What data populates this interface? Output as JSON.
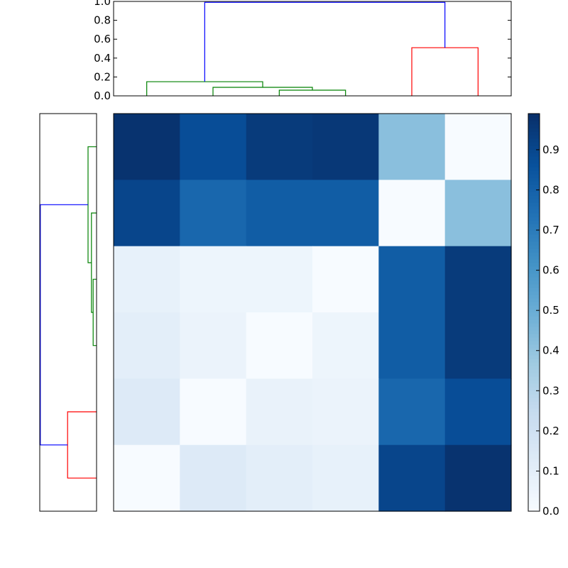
{
  "chart_data": {
    "type": "heatmap",
    "title": "",
    "colormap": "Blues",
    "heatmap": {
      "rows": 6,
      "cols": 6,
      "values": [
        [
          0.98,
          0.88,
          0.95,
          0.96,
          0.42,
          0.0
        ],
        [
          0.91,
          0.78,
          0.82,
          0.82,
          0.0,
          0.42
        ],
        [
          0.08,
          0.05,
          0.05,
          0.0,
          0.82,
          0.95
        ],
        [
          0.1,
          0.06,
          0.0,
          0.05,
          0.82,
          0.95
        ],
        [
          0.13,
          0.0,
          0.07,
          0.06,
          0.78,
          0.88
        ],
        [
          0.0,
          0.13,
          0.1,
          0.08,
          0.91,
          0.98
        ]
      ]
    },
    "colorbar": {
      "range": [
        0.0,
        0.99
      ],
      "ticks": [
        0.0,
        0.1,
        0.2,
        0.3,
        0.4,
        0.5,
        0.6,
        0.7,
        0.8,
        0.9
      ],
      "tick_labels": [
        "0.0",
        "0.1",
        "0.2",
        "0.3",
        "0.4",
        "0.5",
        "0.6",
        "0.7",
        "0.8",
        "0.9"
      ]
    },
    "top_dendrogram": {
      "ylim": [
        0.0,
        1.0
      ],
      "ticks": [
        0.0,
        0.2,
        0.4,
        0.6,
        0.8,
        1.0
      ],
      "tick_labels": [
        "0.0",
        "0.2",
        "0.4",
        "0.6",
        "0.8",
        "1.0"
      ],
      "leaf_count": 6,
      "links": [
        {
          "left": 3.0,
          "right": 4.0,
          "height": 0.06,
          "color": "#008000"
        },
        {
          "left": 2.0,
          "right": 3.5,
          "height": 0.09,
          "color": "#008000"
        },
        {
          "left": 1.0,
          "right": 2.75,
          "height": 0.15,
          "color": "#008000"
        },
        {
          "left": 5.0,
          "right": 6.0,
          "height": 0.51,
          "color": "#ff0000"
        },
        {
          "left": 1.875,
          "right": 5.5,
          "height": 0.99,
          "color": "#0000ff"
        }
      ]
    },
    "left_dendrogram": {
      "xlim": [
        0.0,
        1.0
      ],
      "leaf_count": 6,
      "links": [
        {
          "left": 5.0,
          "right": 6.0,
          "height": 0.51,
          "color": "#ff0000"
        },
        {
          "left": 3.0,
          "right": 4.0,
          "height": 0.06,
          "color": "#008000"
        },
        {
          "left": 2.0,
          "right": 3.5,
          "height": 0.09,
          "color": "#008000"
        },
        {
          "left": 1.0,
          "right": 2.75,
          "height": 0.15,
          "color": "#008000"
        },
        {
          "left": 1.875,
          "right": 5.5,
          "height": 0.99,
          "color": "#0000ff"
        }
      ]
    }
  }
}
